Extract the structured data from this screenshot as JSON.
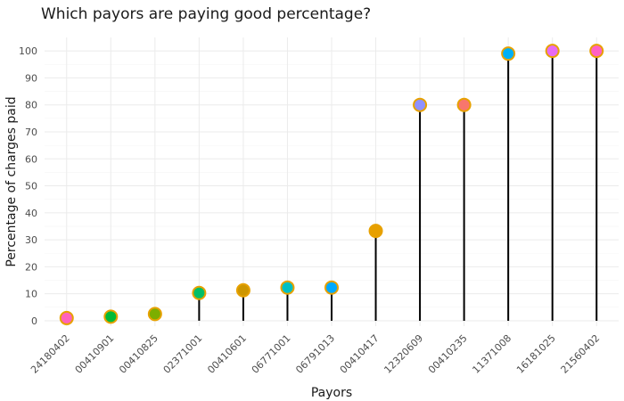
{
  "chart_data": {
    "type": "lollipop",
    "title": "Which payors are paying good percentage?",
    "xlabel": "Payors",
    "ylabel": "Percentage of charges paid",
    "ylim": [
      -2,
      105
    ],
    "yticks": [
      0,
      10,
      20,
      30,
      40,
      50,
      60,
      70,
      80,
      90,
      100
    ],
    "grid": true,
    "categories": [
      "24180402",
      "00410901",
      "00410825",
      "02371001",
      "00410601",
      "06771001",
      "06791013",
      "00410417",
      "12320609",
      "00410235",
      "11371008",
      "16181025",
      "21560402"
    ],
    "values": [
      1,
      1.5,
      2.5,
      10.3,
      11.3,
      12.3,
      12.3,
      33.3,
      80,
      80,
      99,
      100,
      100
    ],
    "point_colors": [
      "#ff62bc",
      "#00ba38",
      "#7cae00",
      "#00be67",
      "#cd9600",
      "#00bfc4",
      "#00a9ff",
      "#e7a000",
      "#8f91ff",
      "#f8766d",
      "#00b0f6",
      "#e76bf3",
      "#ff61c3"
    ],
    "point_outline": "#e7a100",
    "stem_color": "#000000"
  }
}
